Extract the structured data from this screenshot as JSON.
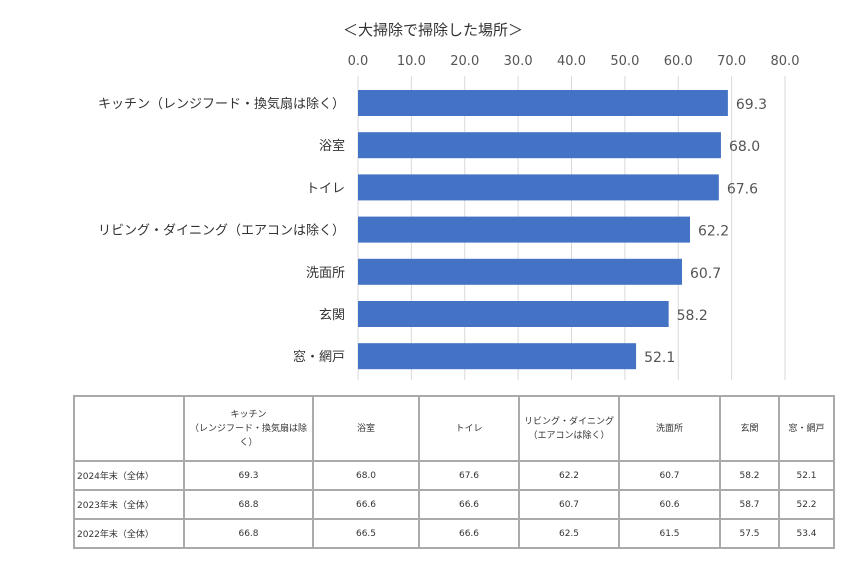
{
  "chart_data": {
    "type": "bar",
    "orientation": "horizontal",
    "title": "＜大掃除で掃除した場所＞",
    "categories": [
      "キッチン（レンジフード・換気扇は除く）",
      "浴室",
      "トイレ",
      "リビング・ダイニング（エアコンは除く）",
      "洗面所",
      "玄関",
      "窓・網戸"
    ],
    "values": [
      69.3,
      68.0,
      67.6,
      62.2,
      60.7,
      58.2,
      52.1
    ],
    "value_labels": [
      "69.3",
      "68.0",
      "67.6",
      "62.2",
      "60.7",
      "58.2",
      "52.1"
    ],
    "xlim": [
      0,
      80
    ],
    "ticks": [
      "0.0",
      "10.0",
      "20.0",
      "30.0",
      "40.0",
      "50.0",
      "60.0",
      "70.0",
      "80.0"
    ],
    "axis_position": "top",
    "grid": true,
    "bar_color": "#4472C4"
  },
  "table": {
    "headers": [
      "",
      "キッチン\n（レンジフード・換気扇は除\nく）",
      "浴室",
      "トイレ",
      "リビング・ダイニング\n（エアコンは除く）",
      "洗面所",
      "玄関",
      "窓・網戸"
    ],
    "rows": [
      [
        "2024年末（全体）",
        "69.3",
        "68.0",
        "67.6",
        "62.2",
        "60.7",
        "58.2",
        "52.1"
      ],
      [
        "2023年末（全体）",
        "68.8",
        "66.6",
        "66.6",
        "60.7",
        "60.6",
        "58.7",
        "52.2"
      ],
      [
        "2022年末（全体）",
        "66.8",
        "66.5",
        "66.6",
        "62.5",
        "61.5",
        "57.5",
        "53.4"
      ]
    ]
  }
}
